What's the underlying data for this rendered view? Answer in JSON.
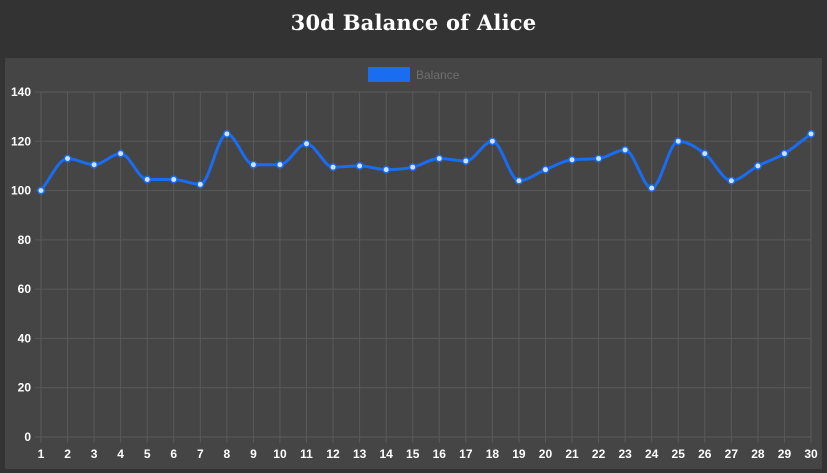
{
  "page": {
    "title": "30d Balance of Alice"
  },
  "colors": {
    "background": "#333333",
    "panel": "#454545",
    "grid": "#5a5a5a",
    "series_line": "#1a6cf0",
    "point_fill": "#cfe2ff",
    "tick_text": "#ffffff",
    "legend_text": "#6e6e6e"
  },
  "chart_data": {
    "type": "line",
    "title": "30d Balance of Alice",
    "xlabel": "",
    "ylabel": "",
    "x": [
      1,
      2,
      3,
      4,
      5,
      6,
      7,
      8,
      9,
      10,
      11,
      12,
      13,
      14,
      15,
      16,
      17,
      18,
      19,
      20,
      21,
      22,
      23,
      24,
      25,
      26,
      27,
      28,
      29,
      30
    ],
    "series": [
      {
        "name": "Balance",
        "values": [
          100,
          113,
          110.5,
          115,
          104.5,
          104.5,
          102.5,
          123,
          110.5,
          110.5,
          119,
          109.5,
          110,
          108.5,
          109.5,
          113,
          112,
          120,
          104,
          108.5,
          112.5,
          113,
          116.5,
          101,
          120,
          115,
          104,
          110,
          115,
          123
        ]
      }
    ],
    "ylim": [
      0,
      140
    ],
    "yticks": [
      0,
      20,
      40,
      60,
      80,
      100,
      120,
      140
    ],
    "grid": true,
    "legend": "top-center",
    "smooth": true
  }
}
